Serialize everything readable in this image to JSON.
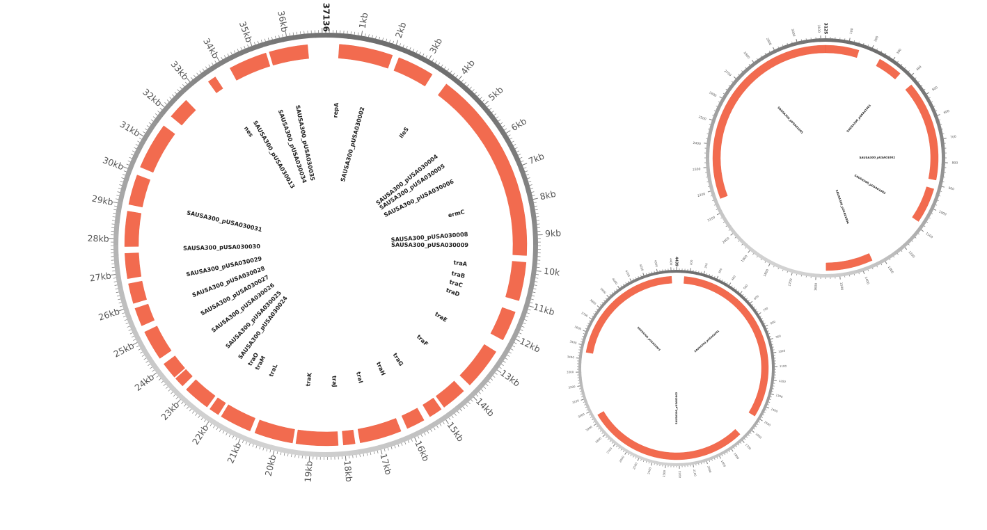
{
  "colors": {
    "feature": "#f26b4f",
    "ring_dark": "#6e6e6e",
    "ring_light": "#d0d0d0",
    "tick": "#777777",
    "label": "#222222"
  },
  "maps": [
    {
      "id": "plasmid-large",
      "size_label": "37136",
      "length_kb": 37.136,
      "tick_labels": [
        "1kb",
        "2kb",
        "3kb",
        "4kb",
        "5kb",
        "6kb",
        "7kb",
        "8kb",
        "9kb",
        "10k",
        "11kb",
        "12kb",
        "13kb",
        "14kb",
        "15kb",
        "16kb",
        "17kb",
        "18kb",
        "19kb",
        "20kb",
        "21kb",
        "22kb",
        "23kb",
        "24kb",
        "25kb",
        "26kb",
        "27kb",
        "28kb",
        "29kb",
        "30kb",
        "31kb",
        "32kb",
        "33kb",
        "34kb",
        "35kb",
        "36kb"
      ],
      "features": [
        {
          "start": 0.4,
          "end": 2.0
        },
        {
          "start": 2.2,
          "end": 3.3
        },
        {
          "start": 3.8,
          "end": 9.6
        },
        {
          "start": 9.8,
          "end": 10.95
        },
        {
          "start": 11.3,
          "end": 12.2
        },
        {
          "start": 12.6,
          "end": 13.85
        },
        {
          "start": 14.1,
          "end": 14.85
        },
        {
          "start": 14.95,
          "end": 15.35
        },
        {
          "start": 15.55,
          "end": 16.1
        },
        {
          "start": 16.3,
          "end": 17.55
        },
        {
          "start": 17.7,
          "end": 18.05
        },
        {
          "start": 18.2,
          "end": 19.45
        },
        {
          "start": 19.55,
          "end": 20.7
        },
        {
          "start": 20.85,
          "end": 21.8
        },
        {
          "start": 21.9,
          "end": 22.2
        },
        {
          "start": 22.3,
          "end": 23.1
        },
        {
          "start": 23.25,
          "end": 23.55
        },
        {
          "start": 23.6,
          "end": 24.1
        },
        {
          "start": 24.3,
          "end": 25.2
        },
        {
          "start": 25.4,
          "end": 25.95
        },
        {
          "start": 26.1,
          "end": 26.7
        },
        {
          "start": 26.85,
          "end": 27.6
        },
        {
          "start": 27.8,
          "end": 28.85
        },
        {
          "start": 29.05,
          "end": 29.95
        },
        {
          "start": 30.2,
          "end": 31.6
        },
        {
          "start": 31.95,
          "end": 32.6
        },
        {
          "start": 33.45,
          "end": 33.7
        },
        {
          "start": 34.2,
          "end": 35.35
        },
        {
          "start": 35.45,
          "end": 36.6
        }
      ],
      "labels": [
        {
          "text": "repA",
          "pos": 0.45
        },
        {
          "text": "SAUSA300_pUSA030002",
          "pos": 1.55
        },
        {
          "text": "ileS",
          "pos": 3.6
        },
        {
          "text": "SAUSA300_pUSA030004",
          "pos": 5.3
        },
        {
          "text": "SAUSA300_pUSA030005",
          "pos": 5.8
        },
        {
          "text": "SAUSA300_pUSA030006",
          "pos": 6.55
        },
        {
          "text": "ermC",
          "pos": 7.9
        },
        {
          "text": "SAUSA300_pUSA030008",
          "pos": 8.85
        },
        {
          "text": "SAUSA300_pUSA030009",
          "pos": 9.3
        },
        {
          "text": "traA",
          "pos": 10.1
        },
        {
          "text": "traB",
          "pos": 10.6
        },
        {
          "text": "traC",
          "pos": 11.0
        },
        {
          "text": "traD",
          "pos": 11.4
        },
        {
          "text": "traE",
          "pos": 12.6
        },
        {
          "text": "traF",
          "pos": 13.9
        },
        {
          "text": "traG",
          "pos": 15.25
        },
        {
          "text": "traH",
          "pos": 16.1
        },
        {
          "text": "traI",
          "pos": 17.1
        },
        {
          "text": "traJ",
          "pos": 18.2
        },
        {
          "text": "traK",
          "pos": 19.3
        },
        {
          "text": "traL",
          "pos": 20.9
        },
        {
          "text": "traM",
          "pos": 21.55
        },
        {
          "text": "traO",
          "pos": 21.9
        },
        {
          "text": "SAUSA300_pUSA030024",
          "pos": 22.4
        },
        {
          "text": "SAUSA300_pUSA030025",
          "pos": 23.1
        },
        {
          "text": "SAUSA300_pUSA030026",
          "pos": 24.0
        },
        {
          "text": "SAUSA300_pUSA030027",
          "pos": 24.85
        },
        {
          "text": "SAUSA300_pUSA030028",
          "pos": 25.7
        },
        {
          "text": "SAUSA300_pUSA030029",
          "pos": 26.6
        },
        {
          "text": "SAUSA300_pUSA030030",
          "pos": 27.7
        },
        {
          "text": "SAUSA300_pUSA030031",
          "pos": 29.2
        },
        {
          "text": "nes",
          "pos": 33.6
        },
        {
          "text": "SAUSA300_pUSA030013",
          "pos": 34.05
        },
        {
          "text": "SAUSA300_pUSA030034",
          "pos": 35.2
        },
        {
          "text": "SAUSA300_pUSA030035",
          "pos": 35.95
        }
      ]
    },
    {
      "id": "plasmid-mid",
      "size_label": "3125",
      "length": 3125,
      "tick_labels": [
        "100",
        "200",
        "300",
        "400",
        "500",
        "600",
        "700",
        "800",
        "900",
        "1000",
        "1100",
        "1200",
        "1300",
        "1400",
        "1500",
        "1600",
        "1700",
        "1800",
        "1900",
        "2000",
        "2100",
        "2200",
        "2300",
        "2400",
        "2500",
        "2600",
        "2700",
        "2800",
        "2900",
        "3000",
        "3100"
      ],
      "features": [
        {
          "start": 0,
          "end": 150
        },
        {
          "start": 250,
          "end": 360
        },
        {
          "start": 430,
          "end": 880
        },
        {
          "start": 920,
          "end": 1080
        },
        {
          "start": 1350,
          "end": 1560
        },
        {
          "start": 2160,
          "end": 3125
        }
      ],
      "labels": [
        {
          "text": "SAUSA300_pUSA01001",
          "pos": 350
        },
        {
          "text": "SAUSA300_pUSA01002",
          "pos": 780
        },
        {
          "text": "SAUSA300_pUSA01003",
          "pos": 1050
        },
        {
          "text": "SAUSA300_pUSA01004",
          "pos": 1400
        },
        {
          "text": "SAUSA300_pUSA01005",
          "pos": 2750
        }
      ]
    },
    {
      "id": "plasmid-small",
      "size_label": "4439",
      "length": 4439,
      "tick_labels": [
        "100",
        "200",
        "300",
        "400",
        "500",
        "600",
        "700",
        "800",
        "900",
        "1000",
        "1100",
        "1200",
        "1300",
        "1400",
        "1500",
        "1600",
        "1700",
        "1800",
        "1900",
        "2000",
        "2100",
        "2200",
        "2300",
        "2400",
        "2500",
        "2600",
        "2700",
        "2800",
        "2900",
        "3000",
        "3100",
        "3200",
        "3300",
        "3400",
        "3500",
        "3600",
        "3700",
        "3800",
        "3900",
        "4000",
        "4100",
        "4200",
        "4300",
        "4400"
      ],
      "features": [
        {
          "start": 60,
          "end": 1500
        },
        {
          "start": 1680,
          "end": 2950
        },
        {
          "start": 3450,
          "end": 4400
        }
      ],
      "labels": [
        {
          "text": "SAUSA300_pUSA02001",
          "pos": 600
        },
        {
          "text": "SAUSA300_pUSA02002",
          "pos": 2220
        },
        {
          "text": "SAUSA300_pUSA02003",
          "pos": 3900
        }
      ]
    }
  ]
}
